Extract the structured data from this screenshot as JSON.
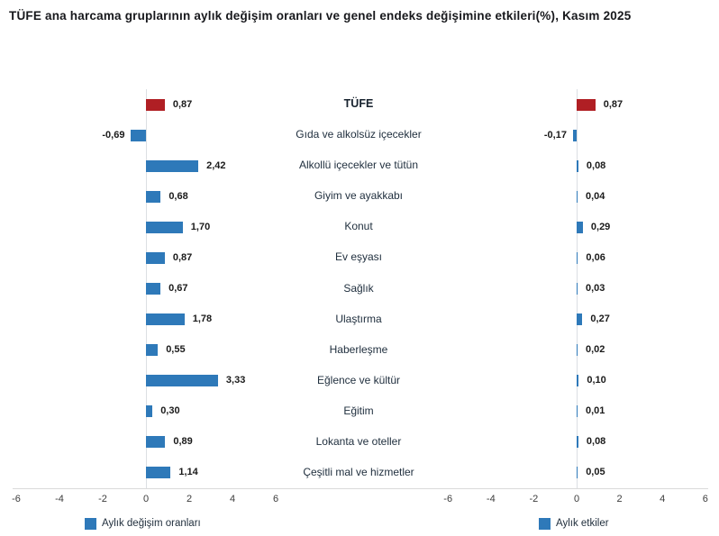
{
  "title": "TÜFE ana harcama gruplarının aylık değişim oranları ve genel endeks değişimine etkileri(%), Kasım 2025",
  "colors": {
    "bar_blue": "#2e79b9",
    "bar_red": "#b01f24",
    "axis_line": "#dadada",
    "zero_line": "#dcdfe3"
  },
  "categories": [
    "TÜFE",
    "Gıda ve alkolsüz içecekler",
    "Alkollü içecekler ve tütün",
    "Giyim ve ayakkabı",
    "Konut",
    "Ev eşyası",
    "Sağlık",
    "Ulaştırma",
    "Haberleşme",
    "Eğlence ve kültür",
    "Eğitim",
    "Lokanta ve oteller",
    "Çeşitli mal ve hizmetler"
  ],
  "chart_data": [
    {
      "type": "bar",
      "orientation": "horizontal",
      "name": "Aylık değişim oranları",
      "categories": [
        "TÜFE",
        "Gıda ve alkolsüz içecekler",
        "Alkollü içecekler ve tütün",
        "Giyim ve ayakkabı",
        "Konut",
        "Ev eşyası",
        "Sağlık",
        "Ulaştırma",
        "Haberleşme",
        "Eğlence ve kültür",
        "Eğitim",
        "Lokanta ve oteller",
        "Çeşitli mal ve hizmetler"
      ],
      "values": [
        0.87,
        -0.69,
        2.42,
        0.68,
        1.7,
        0.87,
        0.67,
        1.78,
        0.55,
        3.33,
        0.3,
        0.89,
        1.14
      ],
      "value_labels": [
        "0,87",
        "-0,69",
        "2,42",
        "0,68",
        "1,70",
        "0,87",
        "0,67",
        "1,78",
        "0,55",
        "3,33",
        "0,30",
        "0,89",
        "1,14"
      ],
      "xlim": [
        -6,
        6
      ],
      "ticks": [
        "-6",
        "-4",
        "-2",
        "0",
        "2",
        "4",
        "6"
      ],
      "highlight_index": 0,
      "grid": false,
      "legend_position": "bottom"
    },
    {
      "type": "bar",
      "orientation": "horizontal",
      "name": "Aylık etkiler",
      "categories": [
        "TÜFE",
        "Gıda ve alkolsüz içecekler",
        "Alkollü içecekler ve tütün",
        "Giyim ve ayakkabı",
        "Konut",
        "Ev eşyası",
        "Sağlık",
        "Ulaştırma",
        "Haberleşme",
        "Eğlence ve kültür",
        "Eğitim",
        "Lokanta ve oteller",
        "Çeşitli mal ve hizmetler"
      ],
      "values": [
        0.87,
        -0.17,
        0.08,
        0.04,
        0.29,
        0.06,
        0.03,
        0.27,
        0.02,
        0.1,
        0.01,
        0.08,
        0.05
      ],
      "value_labels": [
        "0,87",
        "-0,17",
        "0,08",
        "0,04",
        "0,29",
        "0,06",
        "0,03",
        "0,27",
        "0,02",
        "0,10",
        "0,01",
        "0,08",
        "0,05"
      ],
      "xlim": [
        -6,
        6
      ],
      "ticks": [
        "-6",
        "-4",
        "-2",
        "0",
        "2",
        "4",
        "6"
      ],
      "highlight_index": 0,
      "grid": false,
      "legend_position": "bottom"
    }
  ],
  "legend": {
    "left": "Aylık değişim oranları",
    "right": "Aylık etkiler"
  }
}
